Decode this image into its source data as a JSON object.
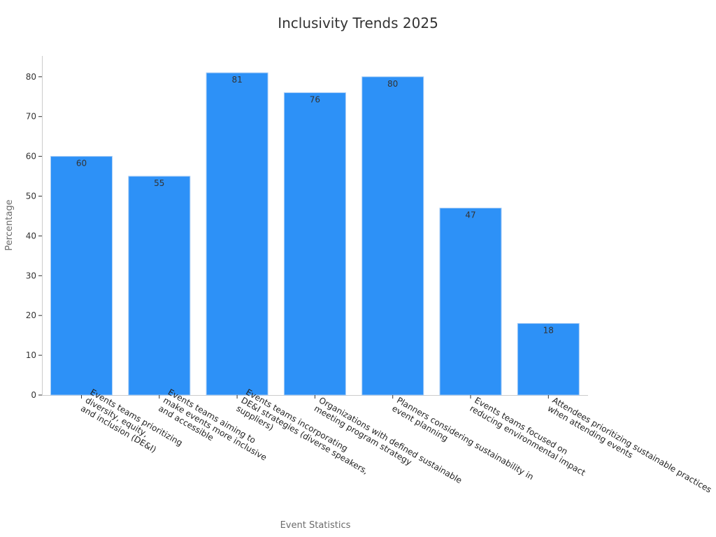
{
  "chart_data": {
    "type": "bar",
    "title": "Inclusivity Trends 2025",
    "xlabel": "Event Statistics",
    "ylabel": "Percentage",
    "ylim": [
      0,
      85
    ],
    "yticks": [
      0,
      10,
      20,
      30,
      40,
      50,
      60,
      70,
      80
    ],
    "grid": false,
    "bar_color": "#2d91f7",
    "categories": [
      [
        "Events teams prioritizing",
        "diversity, equity,",
        "and inclusion (DE&I)"
      ],
      [
        "Events teams aiming to",
        "make events more inclusive",
        "and accessible"
      ],
      [
        "Events teams incorporating",
        "DE&I strategies (diverse speakers,",
        "suppliers)"
      ],
      [
        "Organizations with defined sustainable",
        "meeting program strategy"
      ],
      [
        "Planners considering sustainability in",
        "event planning"
      ],
      [
        "Events teams focused on",
        "reducing environmental impact"
      ],
      [
        "Attendees prioritizing sustainable practices",
        "when attending events"
      ]
    ],
    "values": [
      60,
      55,
      81,
      76,
      80,
      47,
      18
    ]
  }
}
